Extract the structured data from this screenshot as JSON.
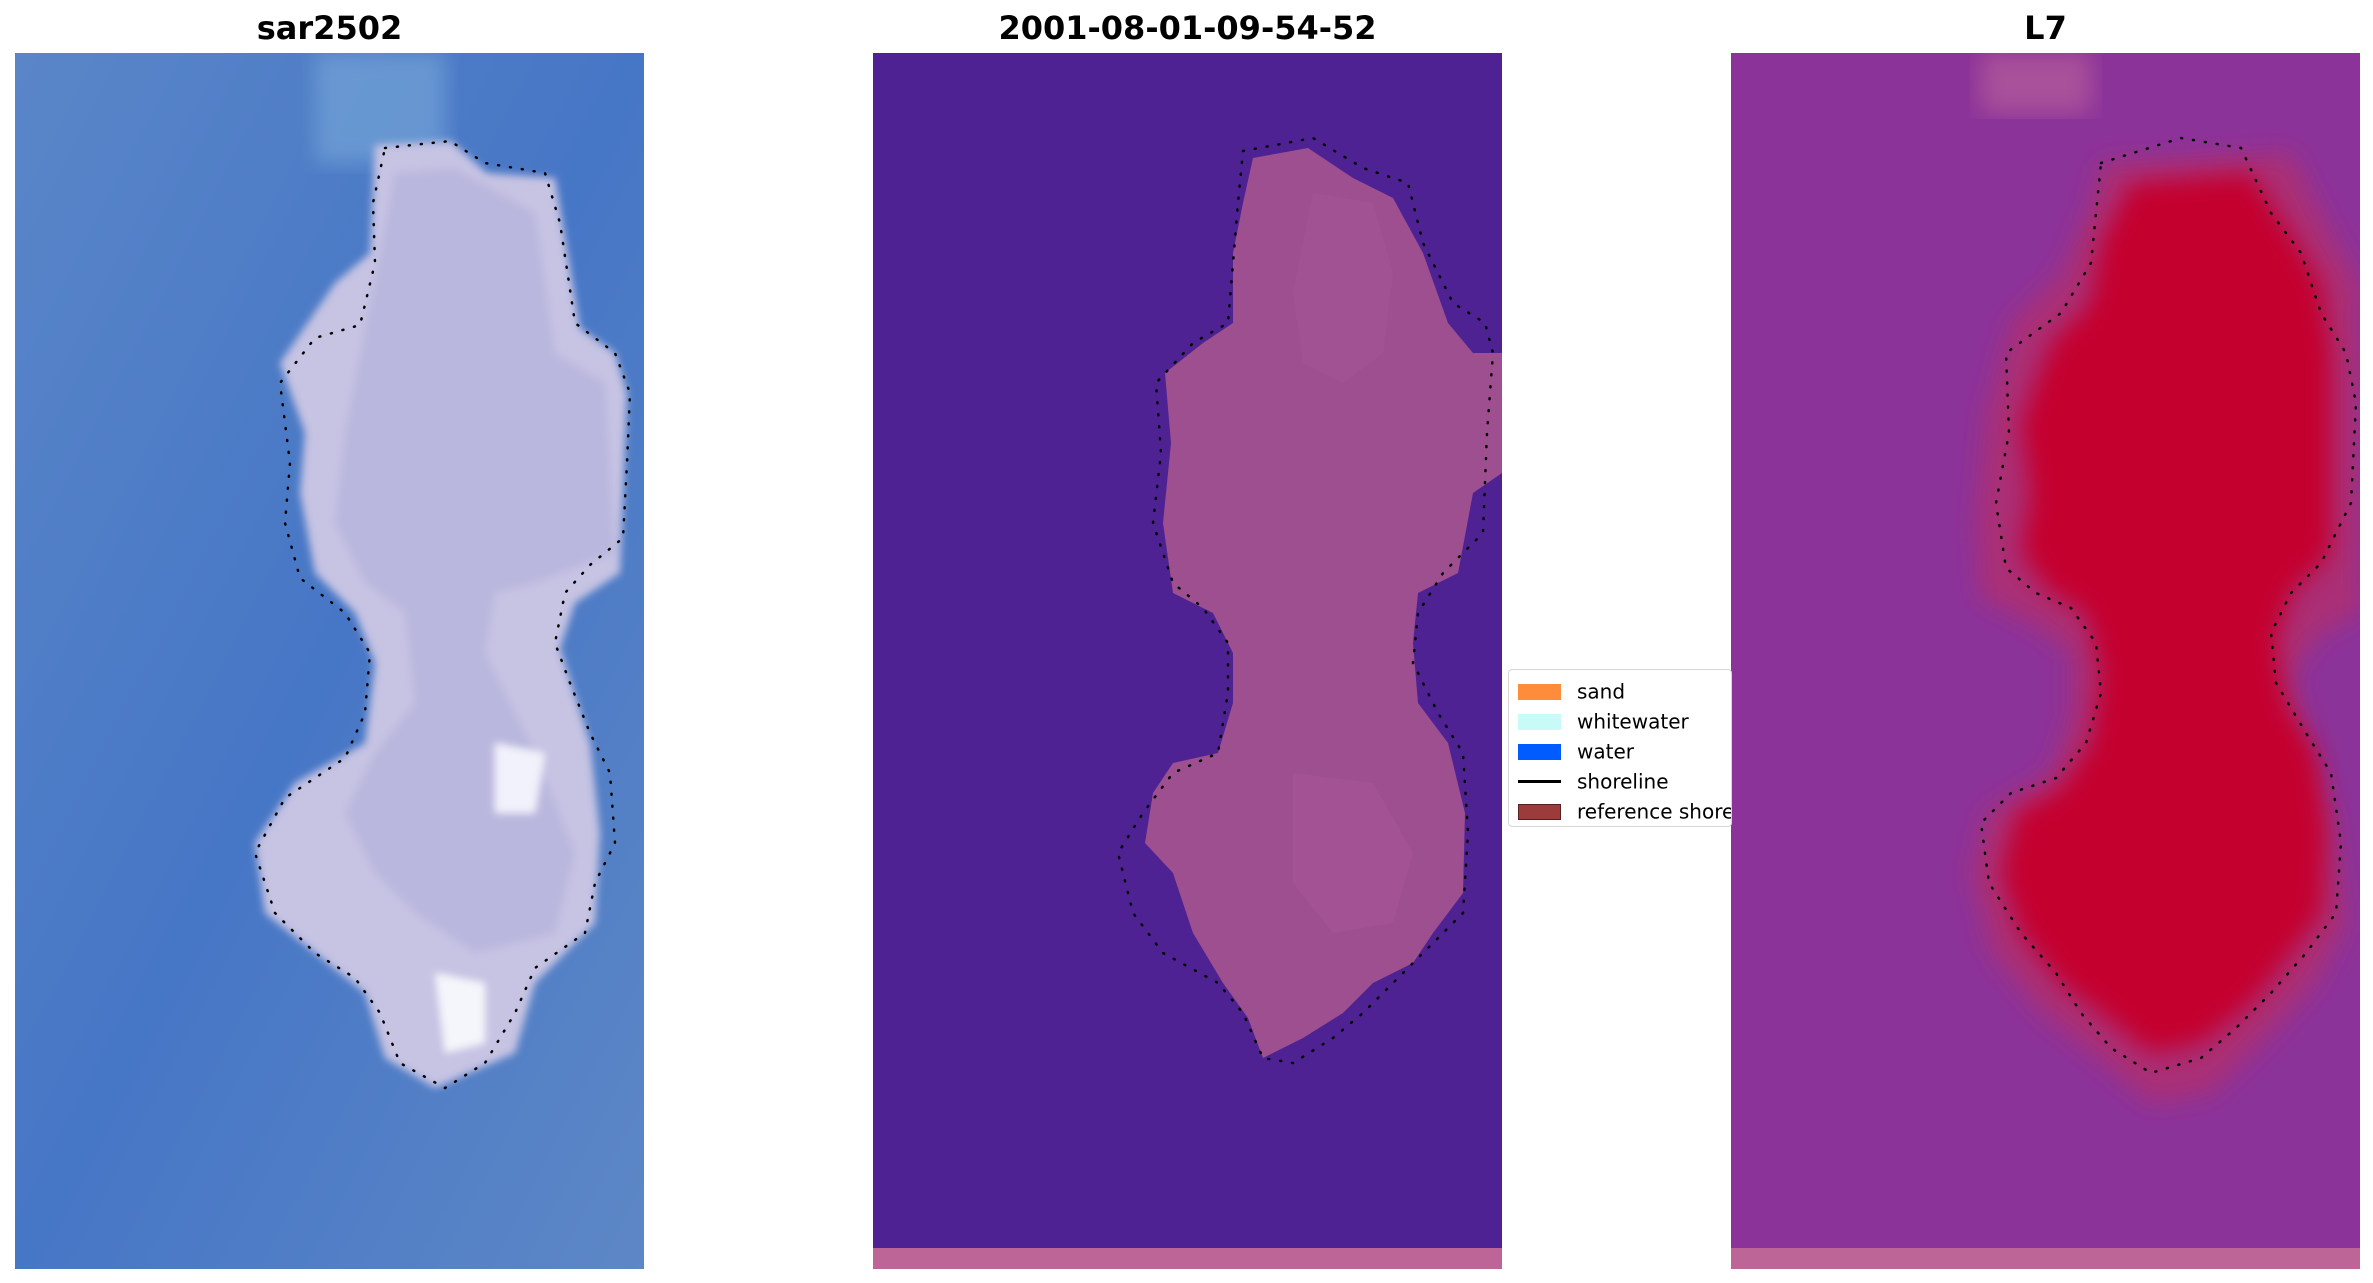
{
  "panels": [
    {
      "id": "rgb",
      "title": "sar2502",
      "description_icon": "satellite-rgb-image"
    },
    {
      "id": "classified",
      "title": "2001-08-01-09-54-52",
      "description_icon": "classified-image"
    },
    {
      "id": "mndwi",
      "title": "L7",
      "description_icon": "index-image"
    }
  ],
  "legend": {
    "items": [
      {
        "label": "sand",
        "color": "#ff8c3a",
        "kind": "patch"
      },
      {
        "label": "whitewater",
        "color": "#c8fbf8",
        "kind": "patch"
      },
      {
        "label": "water",
        "color": "#005cff",
        "kind": "patch"
      },
      {
        "label": "shoreline",
        "color": "#000000",
        "kind": "line"
      },
      {
        "label": "reference shoreline",
        "color": "#9b3b3b",
        "kind": "patch"
      }
    ]
  },
  "colors": {
    "rgb_water": "#4a78c4",
    "rgb_land": "#c8c4e4",
    "classified_background": "#4f2293",
    "classified_land": "#a0508f",
    "classified_bottom_strip": "#bc6596",
    "index_background": "#8c3399",
    "index_land": "#c2062e",
    "index_bottom_strip": "#bc6596",
    "shoreline_dots": "#000000"
  }
}
